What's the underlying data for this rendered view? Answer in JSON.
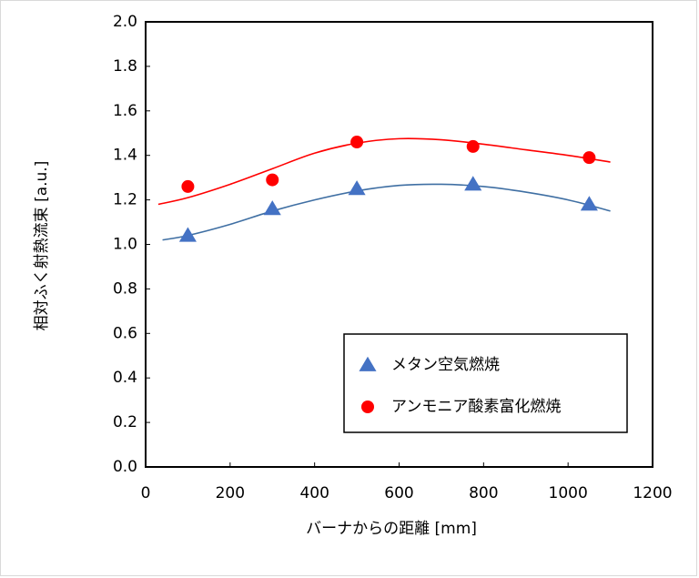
{
  "chart_data": {
    "type": "scatter",
    "x_label": "バーナからの距離 [mm]",
    "y_label": "相対ふく射熱流束 [a.u.]",
    "xlim": [
      0,
      1200
    ],
    "xticks": [
      0,
      200,
      400,
      600,
      800,
      1000,
      1200
    ],
    "ylim": [
      0,
      2.0
    ],
    "yticks": [
      {
        "value": 0,
        "label": "0.0"
      },
      {
        "value": 0.2,
        "label": "0.2"
      },
      {
        "value": 0.4,
        "label": "0.4"
      },
      {
        "value": 0.6,
        "label": "0.6"
      },
      {
        "value": 0.8,
        "label": "0.8"
      },
      {
        "value": 1.0,
        "label": "1.0"
      },
      {
        "value": 1.2,
        "label": "1.2"
      },
      {
        "value": 1.4,
        "label": "1.4"
      },
      {
        "value": 1.6,
        "label": "1.6"
      },
      {
        "value": 1.8,
        "label": "1.8"
      },
      {
        "value": 2.0,
        "label": "2.0"
      }
    ],
    "legend": "lower right",
    "series": [
      {
        "name": "メタン空気燃焼",
        "color": "#4472c4",
        "marker": "triangle",
        "x": [
          100,
          300,
          500,
          775,
          1050
        ],
        "values": [
          1.04,
          1.16,
          1.25,
          1.27,
          1.18
        ],
        "fit_x": [
          40,
          100,
          200,
          300,
          400,
          500,
          600,
          700,
          800,
          900,
          1000,
          1100
        ],
        "fit_values": [
          1.02,
          1.04,
          1.09,
          1.15,
          1.2,
          1.24,
          1.265,
          1.27,
          1.26,
          1.235,
          1.2,
          1.15
        ],
        "fit_color": "#3f6fa3"
      },
      {
        "name": "アンモニア酸素富化燃焼",
        "color": "#ff0000",
        "marker": "circle",
        "x": [
          100,
          300,
          500,
          775,
          1050
        ],
        "values": [
          1.26,
          1.29,
          1.46,
          1.44,
          1.39
        ],
        "fit_x": [
          30,
          100,
          200,
          300,
          400,
          500,
          600,
          700,
          800,
          900,
          1000,
          1100
        ],
        "fit_values": [
          1.18,
          1.21,
          1.27,
          1.34,
          1.41,
          1.455,
          1.475,
          1.47,
          1.45,
          1.425,
          1.4,
          1.37
        ],
        "fit_color": "#ff0000"
      }
    ]
  }
}
